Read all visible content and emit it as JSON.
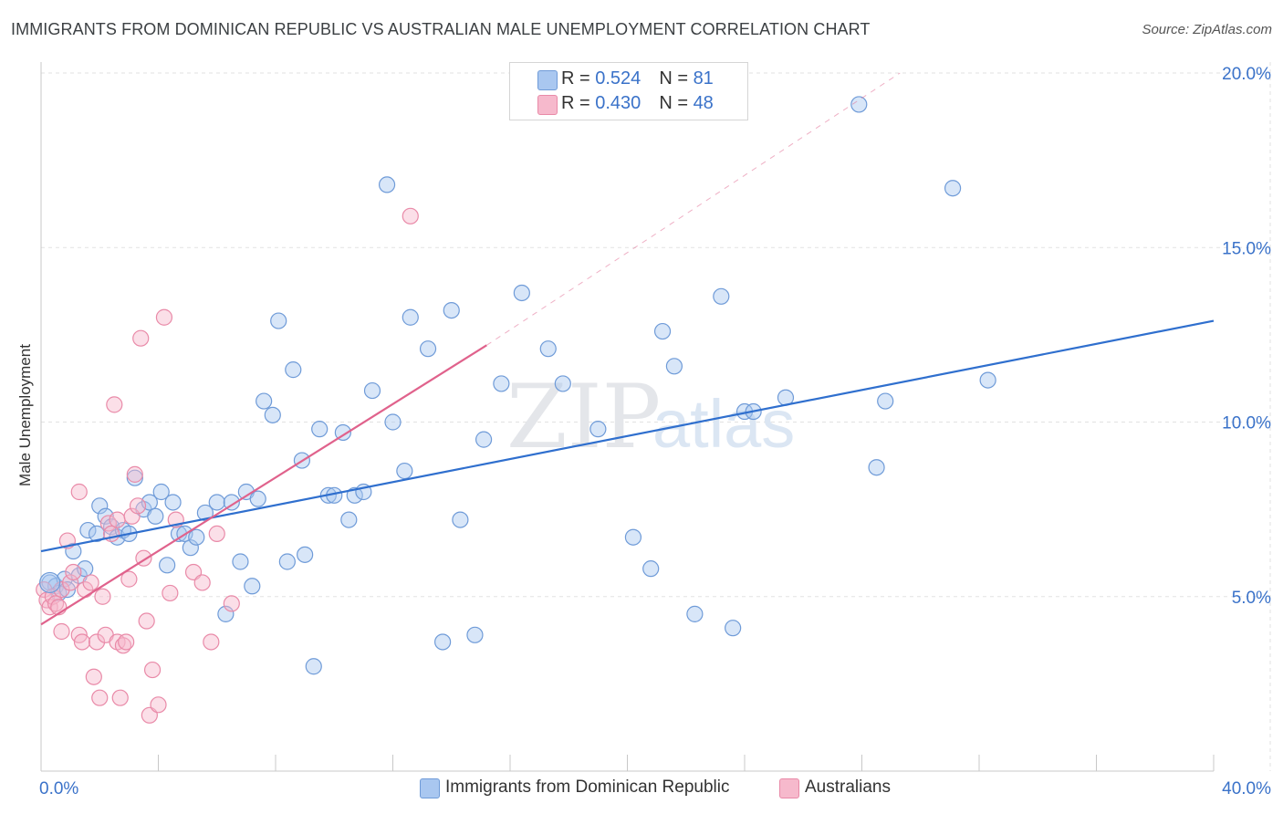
{
  "title": "IMMIGRANTS FROM DOMINICAN REPUBLIC VS AUSTRALIAN MALE UNEMPLOYMENT CORRELATION CHART",
  "source": "Source: ZipAtlas.com",
  "watermark": {
    "zip": "ZIP",
    "atlas": "atlas"
  },
  "legend": {
    "r_label": "R =",
    "n_label": "N =",
    "series": [
      {
        "name": "Immigrants from Dominican Republic",
        "r": "0.524",
        "n": "81",
        "color": "#a9c7f0",
        "stroke": "#6f9bd8",
        "line": "#2f6fce"
      },
      {
        "name": "Australians",
        "r": "0.430",
        "n": "48",
        "color": "#f6b9cc",
        "stroke": "#e98aa8",
        "line": "#e0628c"
      }
    ]
  },
  "chart_data": {
    "type": "scatter",
    "title": "IMMIGRANTS FROM DOMINICAN REPUBLIC VS AUSTRALIAN MALE UNEMPLOYMENT CORRELATION CHART",
    "xlabel": "",
    "ylabel": "Male Unemployment",
    "xlim": [
      0,
      40
    ],
    "ylim": [
      0,
      20
    ],
    "x_tick_labels": [
      "0.0%",
      "40.0%"
    ],
    "y_ticks": [
      5,
      10,
      15,
      20
    ],
    "y_tick_labels": [
      "5.0%",
      "10.0%",
      "15.0%",
      "20.0%"
    ],
    "grid": true,
    "series": [
      {
        "name": "Immigrants from Dominican Republic",
        "points": [
          [
            0.3,
            5.4
          ],
          [
            0.5,
            5.3
          ],
          [
            0.6,
            5.1
          ],
          [
            0.8,
            5.5
          ],
          [
            0.9,
            5.2
          ],
          [
            1.1,
            6.3
          ],
          [
            1.3,
            5.6
          ],
          [
            1.5,
            5.8
          ],
          [
            1.6,
            6.9
          ],
          [
            1.9,
            6.8
          ],
          [
            2.0,
            7.6
          ],
          [
            2.2,
            7.3
          ],
          [
            2.4,
            7.0
          ],
          [
            2.6,
            6.7
          ],
          [
            2.8,
            6.9
          ],
          [
            3.0,
            6.8
          ],
          [
            3.2,
            8.4
          ],
          [
            3.5,
            7.5
          ],
          [
            3.7,
            7.7
          ],
          [
            3.9,
            7.3
          ],
          [
            4.1,
            8.0
          ],
          [
            4.3,
            5.9
          ],
          [
            4.5,
            7.7
          ],
          [
            4.7,
            6.8
          ],
          [
            4.9,
            6.8
          ],
          [
            5.1,
            6.4
          ],
          [
            5.3,
            6.7
          ],
          [
            5.6,
            7.4
          ],
          [
            6.0,
            7.7
          ],
          [
            6.3,
            4.5
          ],
          [
            6.5,
            7.7
          ],
          [
            6.8,
            6.0
          ],
          [
            7.0,
            8.0
          ],
          [
            7.2,
            5.3
          ],
          [
            7.4,
            7.8
          ],
          [
            7.6,
            10.6
          ],
          [
            7.9,
            10.2
          ],
          [
            8.1,
            12.9
          ],
          [
            8.4,
            6.0
          ],
          [
            8.6,
            11.5
          ],
          [
            8.9,
            8.9
          ],
          [
            9.0,
            6.2
          ],
          [
            9.3,
            3.0
          ],
          [
            9.5,
            9.8
          ],
          [
            9.8,
            7.9
          ],
          [
            10.0,
            7.9
          ],
          [
            10.3,
            9.7
          ],
          [
            10.5,
            7.2
          ],
          [
            10.7,
            7.9
          ],
          [
            11.0,
            8.0
          ],
          [
            11.3,
            10.9
          ],
          [
            11.8,
            16.8
          ],
          [
            12.0,
            10.0
          ],
          [
            12.4,
            8.6
          ],
          [
            12.6,
            13.0
          ],
          [
            13.2,
            12.1
          ],
          [
            13.7,
            3.7
          ],
          [
            14.0,
            13.2
          ],
          [
            14.3,
            7.2
          ],
          [
            14.8,
            3.9
          ],
          [
            15.1,
            9.5
          ],
          [
            15.7,
            11.1
          ],
          [
            16.4,
            13.7
          ],
          [
            17.3,
            12.1
          ],
          [
            17.8,
            11.1
          ],
          [
            19.0,
            9.8
          ],
          [
            20.2,
            6.7
          ],
          [
            20.8,
            5.8
          ],
          [
            21.2,
            12.6
          ],
          [
            21.6,
            11.6
          ],
          [
            22.3,
            4.5
          ],
          [
            23.2,
            13.6
          ],
          [
            23.6,
            4.1
          ],
          [
            24.0,
            10.3
          ],
          [
            24.3,
            10.3
          ],
          [
            25.4,
            10.7
          ],
          [
            27.9,
            19.1
          ],
          [
            28.5,
            8.7
          ],
          [
            28.8,
            10.6
          ],
          [
            31.1,
            16.7
          ],
          [
            32.3,
            11.2
          ]
        ]
      },
      {
        "name": "Australians",
        "points": [
          [
            0.1,
            5.2
          ],
          [
            0.2,
            4.9
          ],
          [
            0.3,
            4.7
          ],
          [
            0.4,
            5.0
          ],
          [
            0.5,
            4.8
          ],
          [
            0.6,
            4.7
          ],
          [
            0.7,
            5.2
          ],
          [
            0.7,
            4.0
          ],
          [
            0.9,
            6.6
          ],
          [
            1.0,
            5.4
          ],
          [
            1.1,
            5.7
          ],
          [
            1.3,
            8.0
          ],
          [
            1.3,
            3.9
          ],
          [
            1.4,
            3.7
          ],
          [
            1.5,
            5.2
          ],
          [
            1.7,
            5.4
          ],
          [
            1.8,
            2.7
          ],
          [
            1.9,
            3.7
          ],
          [
            2.0,
            2.1
          ],
          [
            2.1,
            5.0
          ],
          [
            2.2,
            3.9
          ],
          [
            2.3,
            7.1
          ],
          [
            2.4,
            6.8
          ],
          [
            2.5,
            10.5
          ],
          [
            2.6,
            7.2
          ],
          [
            2.6,
            3.7
          ],
          [
            2.7,
            2.1
          ],
          [
            2.8,
            3.6
          ],
          [
            2.9,
            3.7
          ],
          [
            3.0,
            5.5
          ],
          [
            3.1,
            7.3
          ],
          [
            3.2,
            8.5
          ],
          [
            3.3,
            7.6
          ],
          [
            3.4,
            12.4
          ],
          [
            3.5,
            6.1
          ],
          [
            3.6,
            4.3
          ],
          [
            3.7,
            1.6
          ],
          [
            3.8,
            2.9
          ],
          [
            4.0,
            1.9
          ],
          [
            4.2,
            13.0
          ],
          [
            4.4,
            5.1
          ],
          [
            4.6,
            7.2
          ],
          [
            5.2,
            5.7
          ],
          [
            5.5,
            5.4
          ],
          [
            5.8,
            3.7
          ],
          [
            6.0,
            6.8
          ],
          [
            6.5,
            4.8
          ],
          [
            12.6,
            15.9
          ]
        ]
      }
    ],
    "trendlines": [
      {
        "series": "Immigrants from Dominican Republic",
        "x": [
          0,
          40
        ],
        "y": [
          6.3,
          12.9
        ],
        "style": "solid"
      },
      {
        "series": "Australians",
        "x": [
          0,
          15.2
        ],
        "y": [
          4.2,
          12.2
        ],
        "style": "solid"
      },
      {
        "series": "Australians",
        "x": [
          15.2,
          29.3
        ],
        "y": [
          12.2,
          20.0
        ],
        "style": "dashed"
      }
    ]
  }
}
